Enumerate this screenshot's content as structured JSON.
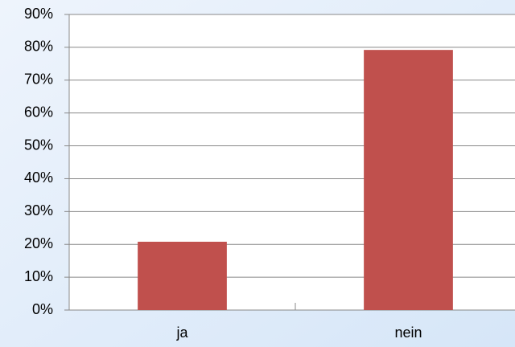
{
  "chart_data": {
    "type": "bar",
    "categories": [
      "ja",
      "nein"
    ],
    "values": [
      20.8,
      79.2
    ],
    "color": "#c0504d",
    "ylim": [
      0,
      90
    ],
    "yticks": [
      {
        "value": 0,
        "label": "0%"
      },
      {
        "value": 10,
        "label": "10%"
      },
      {
        "value": 20,
        "label": "20%"
      },
      {
        "value": 30,
        "label": "30%"
      },
      {
        "value": 40,
        "label": "40%"
      },
      {
        "value": 50,
        "label": "50%"
      },
      {
        "value": 60,
        "label": "60%"
      },
      {
        "value": 70,
        "label": "70%"
      },
      {
        "value": 80,
        "label": "80%"
      },
      {
        "value": 90,
        "label": "90%"
      }
    ],
    "grid": true
  }
}
